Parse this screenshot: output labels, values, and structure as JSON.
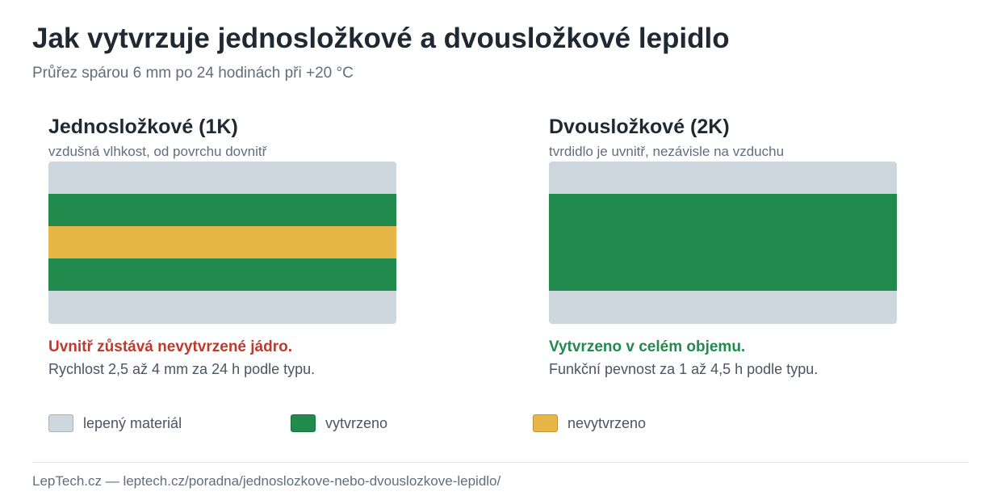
{
  "title": "Jak vytvrzuje jednosložkové a dvousložkové lepidlo",
  "subtitle": "Průřez spárou 6 mm po 24 hodinách při +20 °C",
  "colors": {
    "material": "#cfd7de",
    "cured": "#218a4d",
    "uncured": "#e8b547"
  },
  "panels": {
    "one_k": {
      "heading": "Jednosložkové (1K)",
      "sub": "vzdušná vlhkost, od povrchu dovnitř",
      "layers": [
        "material",
        "cured",
        "uncured",
        "cured",
        "material"
      ],
      "status": "Uvnitř zůstává nevytvrzené jádro.",
      "detail": "Rychlost 2,5 až 4 mm za 24 h podle typu."
    },
    "two_k": {
      "heading": "Dvousložkové (2K)",
      "sub": "tvrdidlo je uvnitř, nezávisle na vzduchu",
      "layers": [
        "material",
        "cured",
        "cured",
        "cured",
        "material"
      ],
      "status": "Vytvrzeno v celém objemu.",
      "detail": "Funkční pevnost za 1 až 4,5 h podle typu."
    }
  },
  "legend": [
    {
      "key": "material",
      "label": "lepený materiál"
    },
    {
      "key": "cured",
      "label": "vytvrzeno"
    },
    {
      "key": "uncured",
      "label": "nevytvrzeno"
    }
  ],
  "footer": "LepTech.cz — leptech.cz/poradna/jednoslozkove-nebo-dvouslozkove-lepidlo/"
}
